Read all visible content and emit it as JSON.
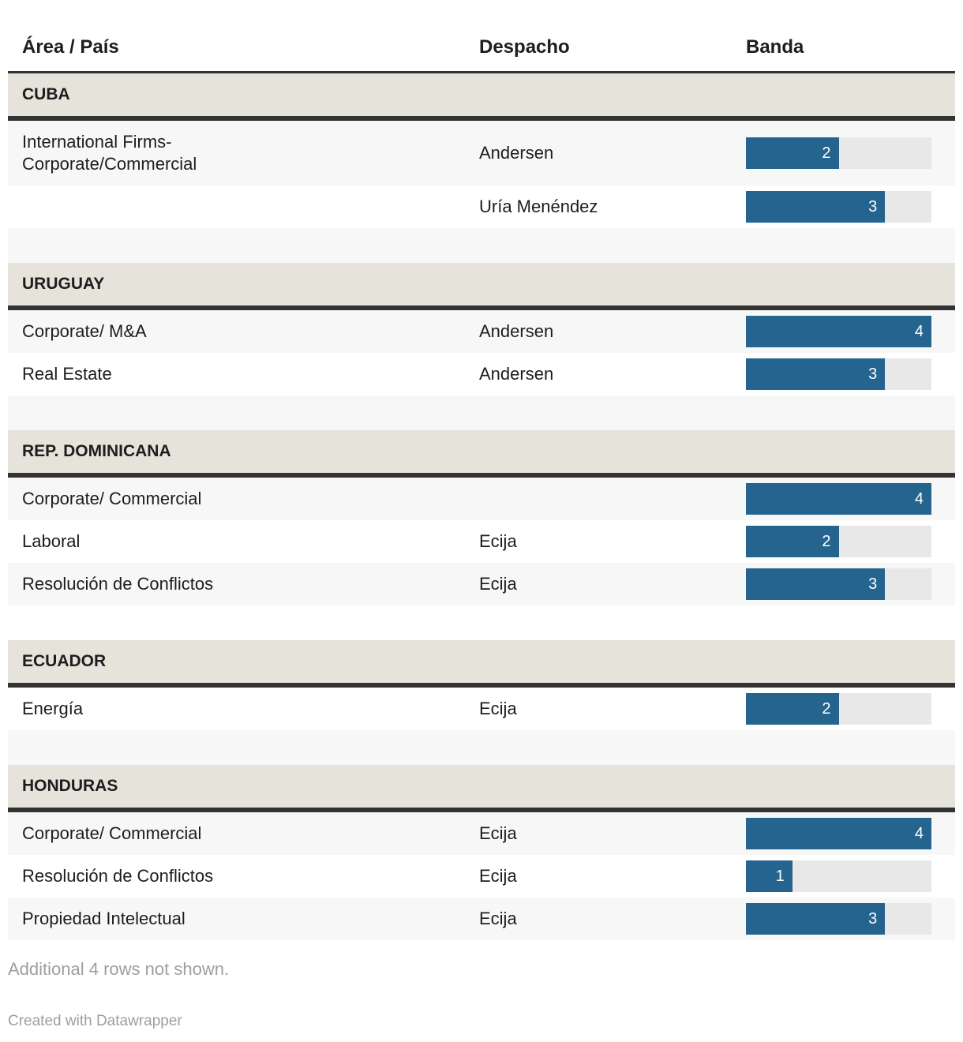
{
  "header": {
    "col_area": "Área / País",
    "col_despacho": "Despacho",
    "col_banda": "Banda"
  },
  "bar_max": 4,
  "colors": {
    "bar": "#25648f",
    "track": "#e8e8e8",
    "section": "#e6e3da",
    "stripe": "#f7f7f7",
    "dark": "#333333",
    "text": "#1d1d1d",
    "muted": "#9e9e9e"
  },
  "sections": [
    {
      "name": "CUBA",
      "rows": [
        {
          "area": "International Firms-\nCorporate/Commercial",
          "despacho": "Andersen",
          "banda": 2
        },
        {
          "area": "",
          "despacho": "Uría Menéndez",
          "banda": 3
        }
      ]
    },
    {
      "name": "URUGUAY",
      "rows": [
        {
          "area": "Corporate/ M&A",
          "despacho": "Andersen",
          "banda": 4
        },
        {
          "area": "Real Estate",
          "despacho": "Andersen",
          "banda": 3
        }
      ]
    },
    {
      "name": "REP. DOMINICANA",
      "rows": [
        {
          "area": "Corporate/ Commercial",
          "despacho": "",
          "banda": 4
        },
        {
          "area": "Laboral",
          "despacho": "Ecija",
          "banda": 2
        },
        {
          "area": "Resolución de Conflictos",
          "despacho": "Ecija",
          "banda": 3
        }
      ]
    },
    {
      "name": "ECUADOR",
      "rows": [
        {
          "area": "Energía",
          "despacho": "Ecija",
          "banda": 2
        }
      ]
    },
    {
      "name": "HONDURAS",
      "rows": [
        {
          "area": "Corporate/ Commercial",
          "despacho": "Ecija",
          "banda": 4
        },
        {
          "area": "Resolución de Conflictos",
          "despacho": "Ecija",
          "banda": 1
        },
        {
          "area": "Propiedad Intelectual",
          "despacho": "Ecija",
          "banda": 3
        }
      ]
    }
  ],
  "footer": {
    "note": "Additional 4 rows not shown.",
    "credit": "Created with Datawrapper"
  },
  "chart_data": {
    "type": "table",
    "columns": [
      "Área / País",
      "Despacho",
      "Banda"
    ],
    "bar_axis_max": 4,
    "rows": [
      {
        "group": "CUBA",
        "area": "International Firms- Corporate/Commercial",
        "despacho": "Andersen",
        "banda": 2
      },
      {
        "group": "CUBA",
        "area": "",
        "despacho": "Uría Menéndez",
        "banda": 3
      },
      {
        "group": "URUGUAY",
        "area": "Corporate/ M&A",
        "despacho": "Andersen",
        "banda": 4
      },
      {
        "group": "URUGUAY",
        "area": "Real Estate",
        "despacho": "Andersen",
        "banda": 3
      },
      {
        "group": "REP. DOMINICANA",
        "area": "Corporate/ Commercial",
        "despacho": "",
        "banda": 4
      },
      {
        "group": "REP. DOMINICANA",
        "area": "Laboral",
        "despacho": "Ecija",
        "banda": 2
      },
      {
        "group": "REP. DOMINICANA",
        "area": "Resolución de Conflictos",
        "despacho": "Ecija",
        "banda": 3
      },
      {
        "group": "ECUADOR",
        "area": "Energía",
        "despacho": "Ecija",
        "banda": 2
      },
      {
        "group": "HONDURAS",
        "area": "Corporate/ Commercial",
        "despacho": "Ecija",
        "banda": 4
      },
      {
        "group": "HONDURAS",
        "area": "Resolución de Conflictos",
        "despacho": "Ecija",
        "banda": 1
      },
      {
        "group": "HONDURAS",
        "area": "Propiedad Intelectual",
        "despacho": "Ecija",
        "banda": 3
      }
    ],
    "note": "Additional 4 rows not shown."
  }
}
